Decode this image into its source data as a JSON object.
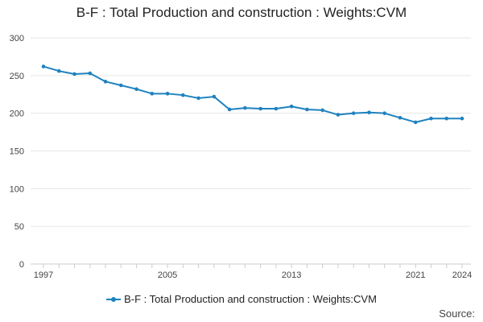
{
  "chart_data": {
    "type": "line",
    "title": "B-F : Total Production and construction : Weights:CVM",
    "x": [
      1997,
      1998,
      1999,
      2000,
      2001,
      2002,
      2003,
      2004,
      2005,
      2006,
      2007,
      2008,
      2009,
      2010,
      2011,
      2012,
      2013,
      2014,
      2015,
      2016,
      2017,
      2018,
      2019,
      2020,
      2021,
      2022,
      2023,
      2024
    ],
    "series": [
      {
        "name": "B-F : Total Production and construction : Weights:CVM",
        "color": "#1f82c0",
        "values": [
          262,
          256,
          252,
          253,
          242,
          237,
          232,
          226,
          226,
          224,
          220,
          222,
          205,
          207,
          206,
          206,
          209,
          205,
          204,
          198,
          200,
          201,
          200,
          194,
          188,
          193,
          193,
          193
        ]
      }
    ],
    "x_tick_labels": [
      "1997",
      "2005",
      "2013",
      "2021",
      "2024"
    ],
    "y_tick_labels": [
      "0",
      "50",
      "100",
      "150",
      "200",
      "250",
      "300"
    ],
    "xlabel": "",
    "ylabel": "",
    "ylim": [
      0,
      300
    ],
    "grid": "horizontal",
    "legend_position": "bottom"
  },
  "source_label": "Source:",
  "colors": {
    "series": "#1f82c0",
    "grid": "#e6e6e6",
    "axis": "#cccccc"
  }
}
